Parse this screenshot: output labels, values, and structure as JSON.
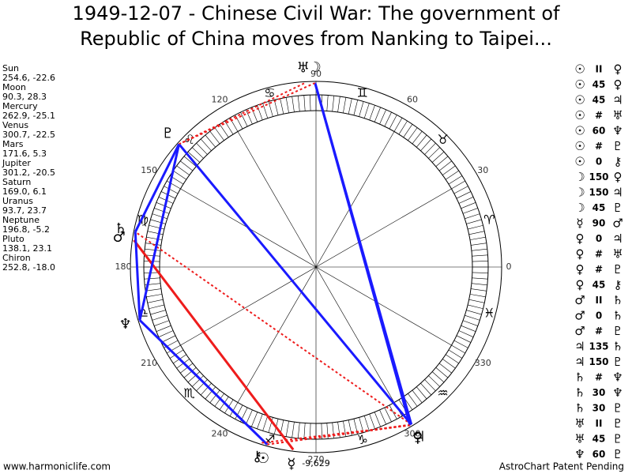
{
  "header": {
    "title_line_1": "1949-12-07 - Chinese Civil War: The government of",
    "title_line_2": "Republic of China moves from Nanking to Taipei..."
  },
  "planets": [
    {
      "name": "Sun",
      "glyph": "☉",
      "position": "254.6, -22.6"
    },
    {
      "name": "Moon",
      "glyph": "☽",
      "position": "90.3, 28.3"
    },
    {
      "name": "Mercury",
      "glyph": "☿",
      "position": "262.9, -25.1"
    },
    {
      "name": "Venus",
      "glyph": "♀",
      "position": "300.7, -22.5"
    },
    {
      "name": "Mars",
      "glyph": "♂",
      "position": "171.6, 5.3"
    },
    {
      "name": "Jupiter",
      "glyph": "♃",
      "position": "301.2, -20.5"
    },
    {
      "name": "Saturn",
      "glyph": "♄",
      "position": "169.0, 6.1"
    },
    {
      "name": "Uranus",
      "glyph": "♅",
      "position": "93.7, 23.7"
    },
    {
      "name": "Neptune",
      "glyph": "♆",
      "position": "196.8, -5.2"
    },
    {
      "name": "Pluto",
      "glyph": "♇",
      "position": "138.1, 23.1"
    },
    {
      "name": "Chiron",
      "glyph": "⚷",
      "position": "252.8, -18.0"
    }
  ],
  "aspects": [
    [
      "☉",
      "II",
      "♀"
    ],
    [
      "☉",
      "45",
      "♀"
    ],
    [
      "☉",
      "45",
      "♃"
    ],
    [
      "☉",
      "#",
      "♅"
    ],
    [
      "☉",
      "60",
      "♆"
    ],
    [
      "☉",
      "#",
      "♇"
    ],
    [
      "☉",
      "0",
      "⚷"
    ],
    [
      "☽",
      "150",
      "♀"
    ],
    [
      "☽",
      "150",
      "♃"
    ],
    [
      "☽",
      "45",
      "♇"
    ],
    [
      "☿",
      "90",
      "♂"
    ],
    [
      "♀",
      "0",
      "♃"
    ],
    [
      "♀",
      "#",
      "♅"
    ],
    [
      "♀",
      "#",
      "♇"
    ],
    [
      "♀",
      "45",
      "⚷"
    ],
    [
      "♂",
      "II",
      "♄"
    ],
    [
      "♂",
      "0",
      "♄"
    ],
    [
      "♂",
      "#",
      "♇"
    ],
    [
      "♃",
      "135",
      "♄"
    ],
    [
      "♃",
      "150",
      "♇"
    ],
    [
      "♄",
      "#",
      "♆"
    ],
    [
      "♄",
      "30",
      "♆"
    ],
    [
      "♄",
      "30",
      "♇"
    ],
    [
      "♅",
      "II",
      "♇"
    ],
    [
      "♅",
      "45",
      "♇"
    ],
    [
      "♆",
      "60",
      "♇"
    ]
  ],
  "signs": [
    "♈",
    "♉",
    "♊",
    "♋",
    "♌",
    "♍",
    "♎",
    "♏",
    "♐",
    "♑",
    "♒",
    "♓"
  ],
  "degree_labels": [
    0,
    30,
    60,
    90,
    120,
    150,
    180,
    210,
    240,
    270,
    300,
    330
  ],
  "bottom_value": "-9,629",
  "footer": {
    "left": "www.harmoniclife.com",
    "right": "AstroChart Patent Pending"
  }
}
